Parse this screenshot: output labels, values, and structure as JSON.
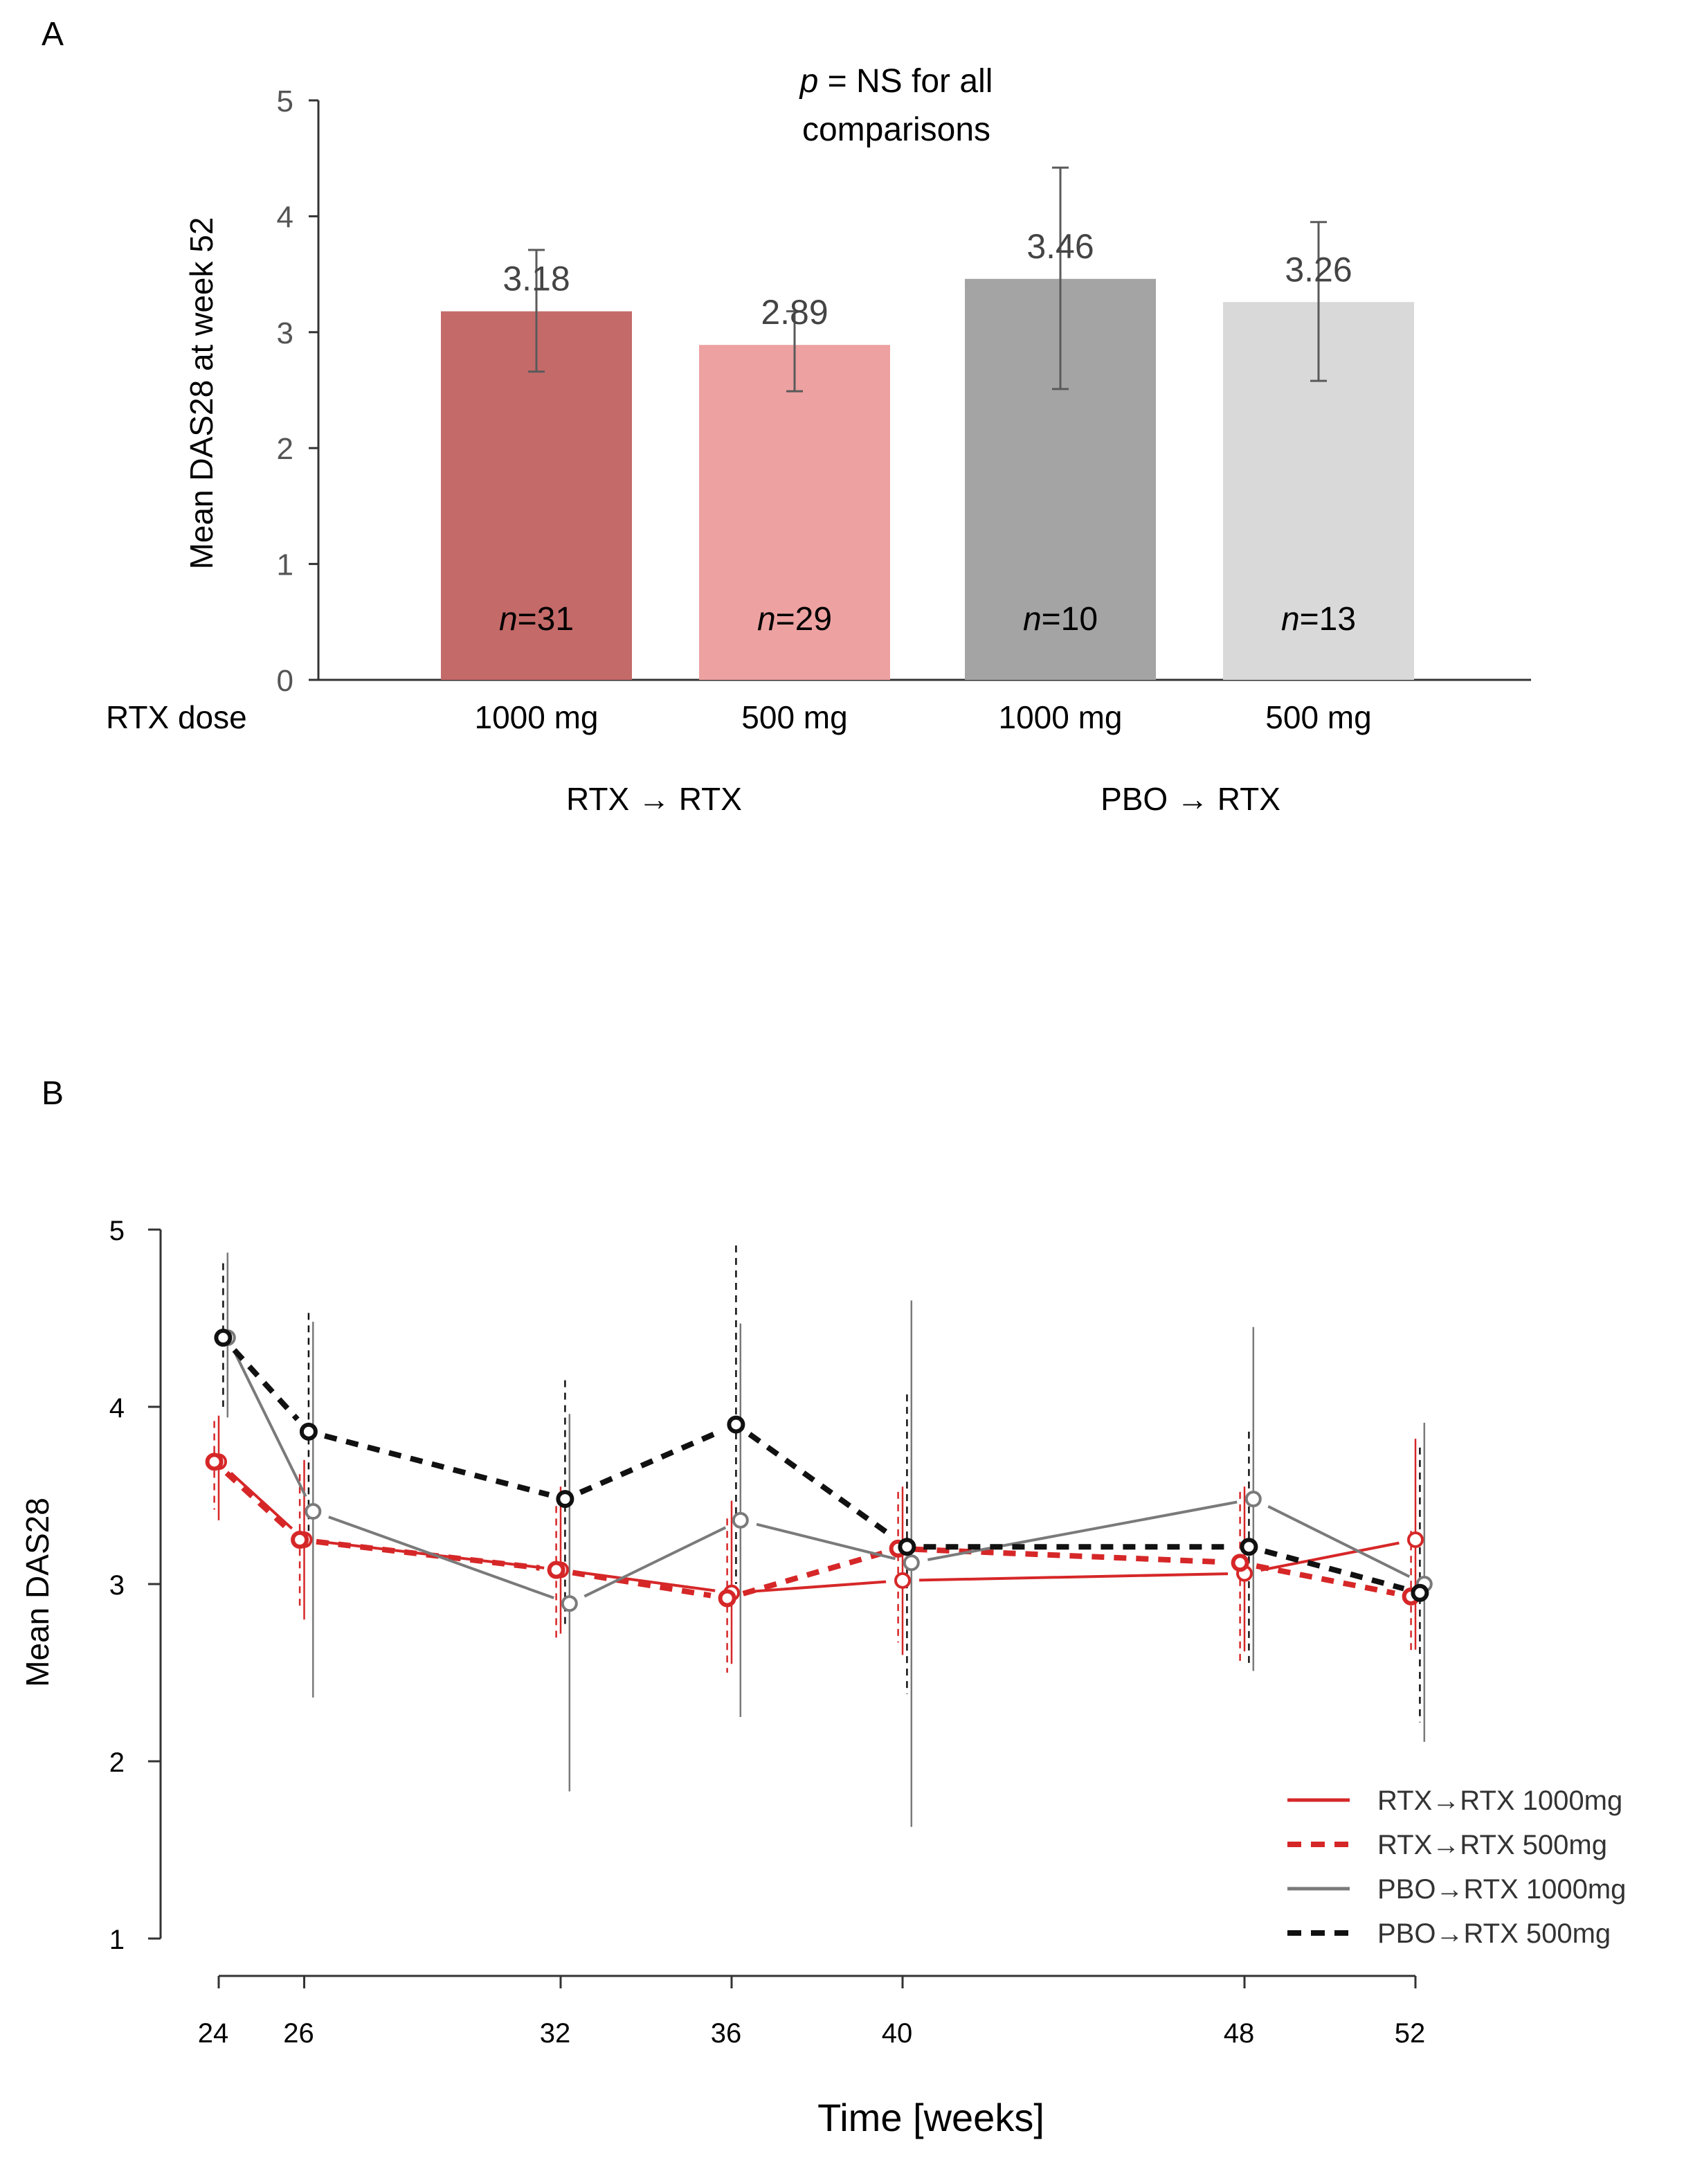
{
  "panels": {
    "a_label": "A",
    "b_label": "B"
  },
  "chart_data": [
    {
      "type": "bar",
      "panel": "A",
      "title": "",
      "annotation": {
        "p": "p",
        "line1_rest": " = NS for all",
        "line2": "comparisons"
      },
      "ylabel": "Mean DAS28 at week 52",
      "ylim": [
        0,
        5
      ],
      "yticks": [
        0,
        1,
        2,
        3,
        4,
        5
      ],
      "grid": false,
      "dose_row_label": "RTX dose",
      "categories": [
        "1000 mg",
        "500 mg",
        "1000 mg",
        "500 mg"
      ],
      "groups": [
        {
          "label": "RTX → RTX",
          "members": [
            0,
            1
          ]
        },
        {
          "label": "PBO → RTX",
          "members": [
            2,
            3
          ]
        }
      ],
      "n_prefix": "n",
      "bars": [
        {
          "category": "1000 mg",
          "group": "RTX → RTX",
          "value": 3.18,
          "value_label": "3.18",
          "err_low": 2.66,
          "err_high": 3.71,
          "n_label": "=31",
          "color": "#c46a69"
        },
        {
          "category": "500 mg",
          "group": "RTX → RTX",
          "value": 2.89,
          "value_label": "2.89",
          "err_low": 2.49,
          "err_high": 3.18,
          "n_label": "=29",
          "color": "#eda1a1"
        },
        {
          "category": "1000 mg",
          "group": "PBO → RTX",
          "value": 3.46,
          "value_label": "3.46",
          "err_low": 2.51,
          "err_high": 4.42,
          "n_label": "=10",
          "color": "#a4a4a4"
        },
        {
          "category": "500 mg",
          "group": "PBO → RTX",
          "value": 3.26,
          "value_label": "3.26",
          "err_low": 2.58,
          "err_high": 3.95,
          "n_label": "=13",
          "color": "#d9d9d9"
        }
      ]
    },
    {
      "type": "line",
      "panel": "B",
      "title": "",
      "xlabel": "Time [weeks]",
      "ylabel": "Mean DAS28",
      "xlim": [
        24,
        52
      ],
      "ylim": [
        1,
        5
      ],
      "xticks": [
        24,
        26,
        32,
        36,
        40,
        48,
        52
      ],
      "xtick_labels": [
        "24",
        "26",
        "32",
        "36",
        "40",
        "48",
        "52"
      ],
      "yticks": [
        1,
        2,
        3,
        4,
        5
      ],
      "ytick_labels": [
        "1",
        "2",
        "3",
        "4",
        "5"
      ],
      "grid": false,
      "legend": {
        "position": "bottom-right"
      },
      "series": [
        {
          "name": "RTX→RTX 1000mg",
          "color": "#d62728",
          "dash": "solid",
          "offset": 0.0,
          "x": [
            24,
            26,
            32,
            36,
            40,
            48,
            52
          ],
          "y": [
            3.69,
            3.25,
            3.08,
            2.95,
            3.02,
            3.06,
            3.25
          ],
          "err_low": [
            3.36,
            2.8,
            2.72,
            2.55,
            2.6,
            2.62,
            2.63
          ],
          "err_high": [
            3.95,
            3.7,
            3.55,
            3.47,
            3.55,
            3.55,
            3.82
          ]
        },
        {
          "name": "RTX→RTX 500mg",
          "color": "#d62728",
          "dash": "dashed",
          "offset": -0.2,
          "x": [
            24,
            26,
            32,
            36,
            40,
            48,
            52
          ],
          "y": [
            3.69,
            3.25,
            3.08,
            2.92,
            3.2,
            3.12,
            2.93
          ],
          "err_low": [
            3.42,
            2.85,
            2.68,
            2.5,
            2.67,
            2.55,
            2.6
          ],
          "err_high": [
            3.92,
            3.62,
            3.44,
            3.37,
            3.52,
            3.52,
            3.3
          ]
        },
        {
          "name": "PBO→RTX 1000mg",
          "color": "#7a7a7a",
          "dash": "solid",
          "offset": 0.4,
          "x": [
            24,
            26,
            32,
            36,
            40,
            48,
            52
          ],
          "y": [
            4.39,
            3.41,
            2.89,
            3.36,
            3.12,
            3.48,
            3.0
          ],
          "err_low": [
            3.94,
            2.36,
            1.83,
            2.25,
            1.63,
            2.51,
            2.11
          ],
          "err_high": [
            4.87,
            4.48,
            3.96,
            4.47,
            4.6,
            4.45,
            3.91
          ]
        },
        {
          "name": "PBO→RTX 500mg",
          "color": "#111111",
          "dash": "dashed",
          "offset": 0.2,
          "x": [
            24,
            26,
            32,
            36,
            40,
            48,
            52
          ],
          "y": [
            4.39,
            3.86,
            3.48,
            3.9,
            3.21,
            3.21,
            2.95
          ],
          "err_low": [
            4.0,
            3.3,
            2.75,
            3.0,
            2.38,
            2.55,
            2.22
          ],
          "err_high": [
            4.81,
            4.53,
            4.15,
            4.91,
            4.07,
            3.86,
            3.77
          ]
        }
      ]
    }
  ]
}
